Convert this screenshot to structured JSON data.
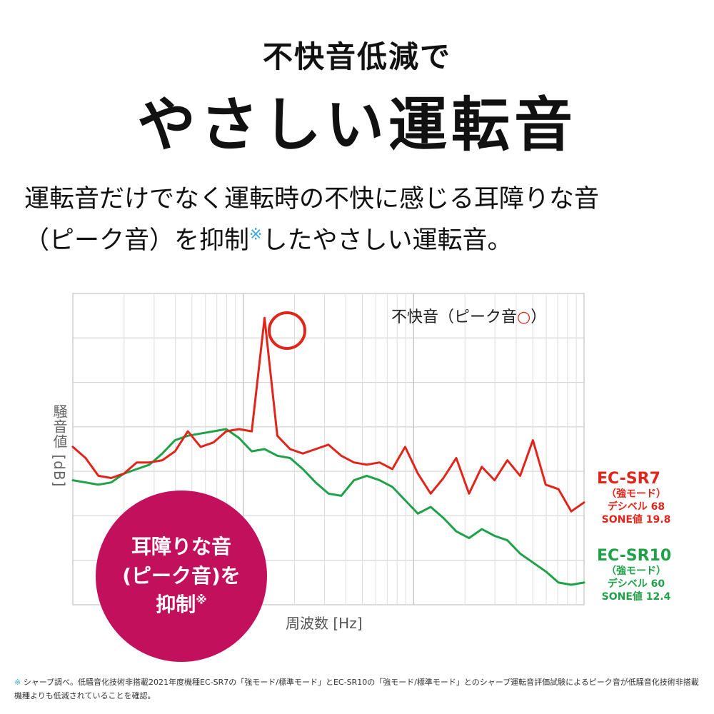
{
  "header": {
    "subtitle": "不快音低減で",
    "title": "やさしい運転音"
  },
  "description": {
    "line1": "運転音だけでなく運転時の不快に感じる耳障りな音",
    "line2_pre": "（ピーク音）を抑制",
    "line2_mark": "※",
    "line2_post": "したやさしい運転音。"
  },
  "badge": {
    "line1": "耳障りな音",
    "line2": "(ピーク音)を",
    "line3": "抑制",
    "mark": "※"
  },
  "footnote": {
    "mark": "※",
    "text": " シャープ調べ。低騒音化技術非搭載2021年度機種EC-SR7の「強モード/標準モード」とEC-SR10の「強モード/標準モード」とのシャープ運転音評価試験によるピーク音が低騒音化技術非搭載機種よりも低減されていることを確認。"
  },
  "colors": {
    "red_series": "#e0251b",
    "green_series": "#1fa149",
    "badge": "#c2105d",
    "grid": "#d6d6d6",
    "note_mark": "#3aa8df"
  },
  "chart_data": {
    "type": "line",
    "title": "",
    "xlabel": "周波数 [Hz]",
    "ylabel": "騒音値 [dB]",
    "x_scale": "log",
    "grid": true,
    "x_tick_labels": [],
    "y_tick_labels": [],
    "annotation": {
      "text": "不快音（ピーク音",
      "symbol": "○",
      "close": "）"
    },
    "ylim": [
      0,
      7
    ],
    "x": [
      0,
      0.5,
      1,
      1.5,
      2,
      2.5,
      3,
      3.5,
      4,
      4.5,
      5,
      5.5,
      6,
      6.5,
      7,
      7.5,
      8,
      8.5,
      9,
      9.5,
      10,
      10.5,
      11,
      11.5,
      12,
      12.5,
      13,
      13.5,
      14,
      14.5,
      15,
      15.5,
      16,
      16.5,
      17,
      17.5,
      18,
      18.5,
      19,
      19.5,
      20
    ],
    "series": [
      {
        "name": "EC-SR7",
        "mode": "（強モード）",
        "decibel": "デシベル 68",
        "sone": "SONE値 19.8",
        "color": "#e0251b",
        "values": [
          3.55,
          3.3,
          2.9,
          2.85,
          2.95,
          3.2,
          3.2,
          3.25,
          3.45,
          3.9,
          3.55,
          3.65,
          3.9,
          3.95,
          3.9,
          6.45,
          3.8,
          3.5,
          3.4,
          3.5,
          3.6,
          3.35,
          3.2,
          3.15,
          3.2,
          3.05,
          3.55,
          2.95,
          2.5,
          2.85,
          3.3,
          2.5,
          3.1,
          2.8,
          3.25,
          2.9,
          3.7,
          2.7,
          2.6,
          2.1,
          2.3
        ]
      },
      {
        "name": "EC-SR10",
        "mode": "（強モード）",
        "decibel": "デシベル 60",
        "sone": "SONE値 12.4",
        "color": "#1fa149",
        "values": [
          2.8,
          2.75,
          2.7,
          2.75,
          2.95,
          3.05,
          3.15,
          3.4,
          3.7,
          3.8,
          3.85,
          3.9,
          3.95,
          3.75,
          3.45,
          3.5,
          3.35,
          3.3,
          3.05,
          2.75,
          2.5,
          2.45,
          2.8,
          2.9,
          2.8,
          2.65,
          2.35,
          2.05,
          2.2,
          1.95,
          1.65,
          1.5,
          1.7,
          1.55,
          1.45,
          1.15,
          0.95,
          0.75,
          0.5,
          0.45,
          0.5
        ]
      }
    ]
  }
}
